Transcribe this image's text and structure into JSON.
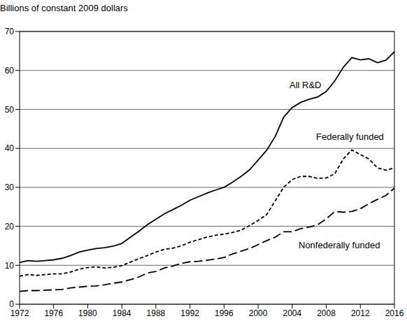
{
  "chart_data": {
    "type": "line",
    "y_label": "Billions of constant 2009 dollars",
    "x": [
      1972,
      1973,
      1974,
      1975,
      1976,
      1977,
      1978,
      1979,
      1980,
      1981,
      1982,
      1983,
      1984,
      1985,
      1986,
      1987,
      1988,
      1989,
      1990,
      1991,
      1992,
      1993,
      1994,
      1995,
      1996,
      1997,
      1998,
      1999,
      2000,
      2001,
      2002,
      2003,
      2004,
      2005,
      2006,
      2007,
      2008,
      2009,
      2010,
      2011,
      2012,
      2013,
      2014,
      2015,
      2016
    ],
    "series": [
      {
        "name": "All R&D",
        "color": "#000000",
        "line_style": "solid",
        "values": [
          10.7,
          11.2,
          11.0,
          11.2,
          11.4,
          11.8,
          12.5,
          13.4,
          13.9,
          14.3,
          14.5,
          14.9,
          15.6,
          17.2,
          18.7,
          20.4,
          21.8,
          23.2,
          24.3,
          25.4,
          26.7,
          27.6,
          28.5,
          29.3,
          30.0,
          31.3,
          32.8,
          34.5,
          37.0,
          39.5,
          43.0,
          48.0,
          50.5,
          51.8,
          52.6,
          53.2,
          54.6,
          57.3,
          60.8,
          63.3,
          62.7,
          63.0,
          62.0,
          62.6,
          64.8
        ]
      },
      {
        "name": "Federally funded",
        "color": "#000000",
        "line_style": "dashed",
        "values": [
          7.2,
          7.6,
          7.4,
          7.6,
          7.8,
          7.8,
          8.3,
          9.0,
          9.4,
          9.6,
          9.3,
          9.5,
          9.9,
          10.8,
          11.7,
          12.5,
          13.4,
          14.1,
          14.4,
          15.0,
          15.9,
          16.6,
          17.2,
          17.7,
          18.0,
          18.4,
          19.0,
          20.2,
          21.5,
          23.0,
          26.5,
          30.0,
          32.0,
          32.8,
          32.8,
          32.3,
          32.4,
          33.5,
          37.3,
          39.6,
          38.4,
          37.3,
          35.0,
          34.4,
          35.0
        ]
      },
      {
        "name": "Nonfederally funded",
        "color": "#000000",
        "line_style": "long_dash",
        "values": [
          3.3,
          3.5,
          3.5,
          3.6,
          3.7,
          3.8,
          4.2,
          4.4,
          4.6,
          4.7,
          5.0,
          5.4,
          5.7,
          6.3,
          7.0,
          8.0,
          8.4,
          9.3,
          9.8,
          10.5,
          10.9,
          11.0,
          11.3,
          11.6,
          12.0,
          12.9,
          13.6,
          14.3,
          15.3,
          16.3,
          17.2,
          18.6,
          18.6,
          19.4,
          19.8,
          20.4,
          21.9,
          23.8,
          23.6,
          23.8,
          24.5,
          25.8,
          26.9,
          27.9,
          29.8
        ]
      }
    ],
    "xlim": [
      1972,
      2016
    ],
    "xticks": [
      1972,
      1976,
      1980,
      1984,
      1988,
      1992,
      1996,
      2000,
      2004,
      2008,
      2012,
      2016
    ],
    "ylim": [
      0,
      70
    ],
    "yticks": [
      0,
      10,
      20,
      30,
      40,
      50,
      60,
      70
    ],
    "grid": true
  }
}
